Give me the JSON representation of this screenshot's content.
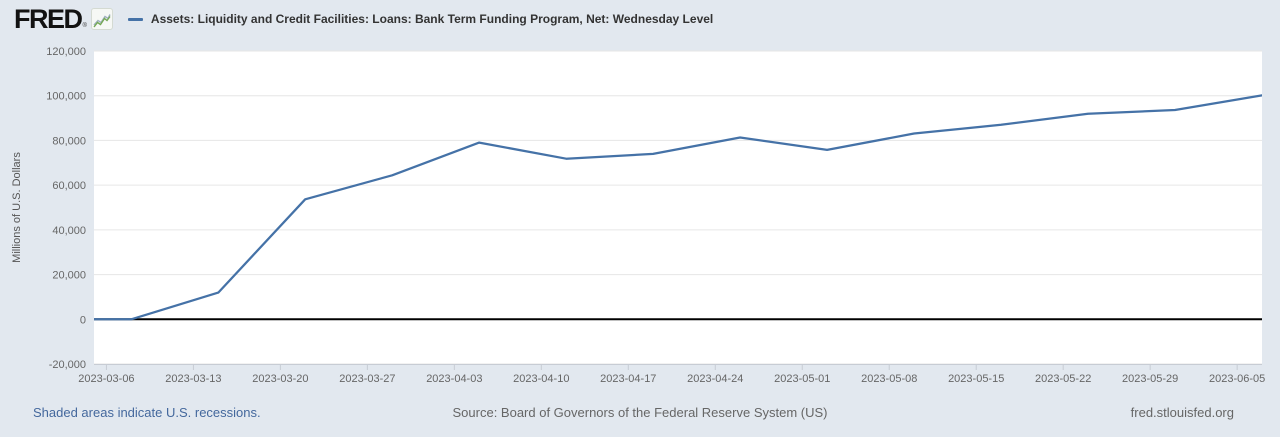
{
  "header": {
    "logo_text": "FRED",
    "logo_registered": "®",
    "legend": {
      "label": "Assets: Liquidity and Credit Facilities: Loans: Bank Term Funding Program, Net: Wednesday Level",
      "line_color": "#4572a7"
    }
  },
  "chart_data": {
    "type": "line",
    "title": "Assets: Liquidity and Credit Facilities: Loans: Bank Term Funding Program, Net: Wednesday Level",
    "ylabel": "Millions of U.S. Dollars",
    "xlabel": "",
    "legend_position": "top",
    "grid": "horizontal",
    "xlim": [
      "2023-03-05",
      "2023-06-07"
    ],
    "ylim": [
      -20000,
      120000
    ],
    "y_ticks": [
      -20000,
      0,
      20000,
      40000,
      60000,
      80000,
      100000,
      120000
    ],
    "y_tick_labels": [
      "-20,000",
      "0",
      "20,000",
      "40,000",
      "60,000",
      "80,000",
      "100,000",
      "120,000"
    ],
    "x_tick_labels": [
      "2023-03-06",
      "2023-03-13",
      "2023-03-20",
      "2023-03-27",
      "2023-04-03",
      "2023-04-10",
      "2023-04-17",
      "2023-04-24",
      "2023-05-01",
      "2023-05-08",
      "2023-05-15",
      "2023-05-22",
      "2023-05-29",
      "2023-06-05"
    ],
    "zero_line_color": "#000000",
    "series": [
      {
        "name": "Assets: Liquidity and Credit Facilities: Loans: Bank Term Funding Program, Net: Wednesday Level",
        "color": "#4572a7",
        "dates": [
          "2023-03-01",
          "2023-03-08",
          "2023-03-15",
          "2023-03-22",
          "2023-03-29",
          "2023-04-05",
          "2023-04-12",
          "2023-04-19",
          "2023-04-26",
          "2023-05-03",
          "2023-05-10",
          "2023-05-17",
          "2023-05-24",
          "2023-05-31",
          "2023-06-07"
        ],
        "values": [
          0,
          0,
          11943,
          53669,
          64403,
          79021,
          71837,
          73982,
          81327,
          75778,
          83101,
          87006,
          91907,
          93615,
          100161
        ]
      }
    ],
    "theme": {
      "page_background": "#e2e8ef",
      "plot_background": "#ffffff",
      "gridline_color": "#e6e6e6",
      "axis_text_color": "#666666",
      "axis_line_color": "#c7ccd4",
      "title_text_color": "#333333",
      "link_color": "#44689d"
    }
  },
  "footer": {
    "recession_note": "Shaded areas indicate U.S. recessions.",
    "source": "Source: Board of Governors of the Federal Reserve System (US)",
    "site": "fred.stlouisfed.org"
  }
}
